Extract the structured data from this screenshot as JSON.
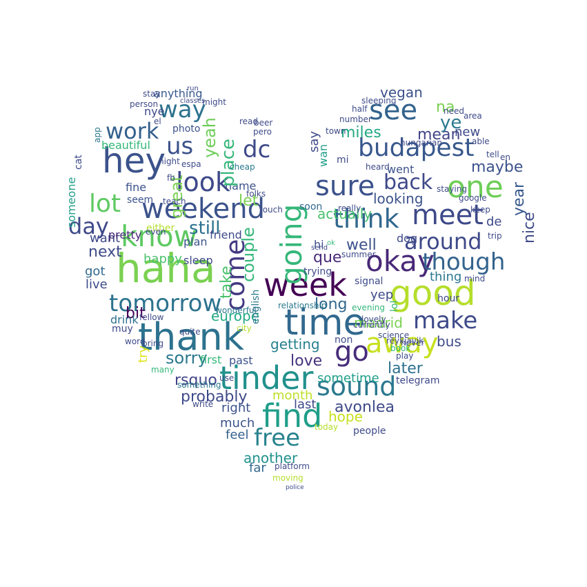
{
  "word_cloud": {
    "shape": "heart",
    "colormap": "viridis",
    "background": "#ffffff",
    "words": [
      {
        "text": "haha",
        "color": "#7ad151"
      },
      {
        "text": "thank",
        "color": "#2c728e"
      },
      {
        "text": "week",
        "color": "#440154"
      },
      {
        "text": "time",
        "color": "#31688e"
      },
      {
        "text": "good",
        "color": "#b5de2b"
      },
      {
        "text": "tinder",
        "color": "#21918c"
      },
      {
        "text": "find",
        "color": "#1f9e89"
      },
      {
        "text": "know",
        "color": "#5ec962"
      },
      {
        "text": "weekend",
        "color": "#3b528b"
      },
      {
        "text": "hey",
        "color": "#3b528b"
      },
      {
        "text": "one",
        "color": "#6ece58"
      },
      {
        "text": "meet",
        "color": "#3e4a89"
      },
      {
        "text": "okay",
        "color": "#482878"
      },
      {
        "text": "going",
        "color": "#35b779"
      },
      {
        "text": "tomorrow",
        "color": "#2c728e"
      },
      {
        "text": "free",
        "color": "#26828e"
      },
      {
        "text": "sound",
        "color": "#2a788e"
      },
      {
        "text": "away",
        "color": "#c8e020"
      },
      {
        "text": "budapest",
        "color": "#38588c"
      },
      {
        "text": "look",
        "color": "#3e4989"
      },
      {
        "text": "sure",
        "color": "#3b528b"
      },
      {
        "text": "think",
        "color": "#31688e"
      },
      {
        "text": "see",
        "color": "#33638d"
      },
      {
        "text": "come",
        "color": "#443983"
      },
      {
        "text": "lot",
        "color": "#5ec962"
      },
      {
        "text": "go",
        "color": "#472c7a"
      },
      {
        "text": "make",
        "color": "#3e4a89"
      },
      {
        "text": "around",
        "color": "#3e4989"
      },
      {
        "text": "though",
        "color": "#33638d"
      },
      {
        "text": "day",
        "color": "#3e4989"
      },
      {
        "text": "work",
        "color": "#35608d"
      },
      {
        "text": "way",
        "color": "#2c728e"
      },
      {
        "text": "back",
        "color": "#3e4989"
      },
      {
        "text": "us",
        "color": "#3b528b"
      },
      {
        "text": "dc",
        "color": "#3e4a89"
      },
      {
        "text": "actually",
        "color": "#4ac16d"
      },
      {
        "text": "looking",
        "color": "#3b528b"
      },
      {
        "text": "still",
        "color": "#2c728e"
      },
      {
        "text": "next",
        "color": "#3e4a89"
      },
      {
        "text": "probably",
        "color": "#3e4a89"
      },
      {
        "text": "rsquo",
        "color": "#414487"
      },
      {
        "text": "sorry",
        "color": "#2a788e"
      },
      {
        "text": "madrid",
        "color": "#7ad151"
      },
      {
        "text": "month",
        "color": "#bddf26"
      },
      {
        "text": "hope",
        "color": "#c8e020"
      },
      {
        "text": "another",
        "color": "#21918c"
      },
      {
        "text": "love",
        "color": "#46327e"
      },
      {
        "text": "sometime",
        "color": "#1f9e89"
      },
      {
        "text": "later",
        "color": "#2d708e"
      },
      {
        "text": "avonlea",
        "color": "#3e4a89"
      },
      {
        "text": "getting",
        "color": "#277f8e"
      },
      {
        "text": "long",
        "color": "#31688e"
      },
      {
        "text": "maybe",
        "color": "#3b528b"
      },
      {
        "text": "mean",
        "color": "#414487"
      },
      {
        "text": "miles",
        "color": "#22a884"
      },
      {
        "text": "vegan",
        "color": "#3b528b"
      },
      {
        "text": "na",
        "color": "#7ad151"
      },
      {
        "text": "ye",
        "color": "#2a788e"
      },
      {
        "text": "new",
        "color": "#3e4a89"
      },
      {
        "text": "nice",
        "color": "#3e4a89"
      },
      {
        "text": "year",
        "color": "#38588c"
      },
      {
        "text": "de",
        "color": "#3e4989"
      },
      {
        "text": "went",
        "color": "#3b528b"
      },
      {
        "text": "well",
        "color": "#3b528b"
      },
      {
        "text": "que",
        "color": "#482878"
      },
      {
        "text": "last",
        "color": "#3e4989"
      },
      {
        "text": "right",
        "color": "#3b528b"
      },
      {
        "text": "much",
        "color": "#3b528b"
      },
      {
        "text": "feel",
        "color": "#35608d"
      },
      {
        "text": "far",
        "color": "#31688e"
      },
      {
        "text": "bus",
        "color": "#3e4a89"
      },
      {
        "text": "yep",
        "color": "#3e4a89"
      },
      {
        "text": "dog",
        "color": "#3e4989"
      },
      {
        "text": "thing",
        "color": "#2a788e"
      },
      {
        "text": "europe",
        "color": "#22a884"
      },
      {
        "text": "bit",
        "color": "#440154"
      },
      {
        "text": "drink",
        "color": "#2d708e"
      },
      {
        "text": "live",
        "color": "#3e4a89"
      },
      {
        "text": "got",
        "color": "#31688e"
      },
      {
        "text": "want",
        "color": "#3e4a89"
      },
      {
        "text": "pretty",
        "color": "#482878"
      },
      {
        "text": "happy",
        "color": "#4ac16d"
      },
      {
        "text": "sleep",
        "color": "#3e4a89"
      },
      {
        "text": "plan",
        "color": "#3b528b"
      },
      {
        "text": "friend",
        "color": "#3e4989"
      },
      {
        "text": "name",
        "color": "#3b528b"
      },
      {
        "text": "fine",
        "color": "#3b528b"
      },
      {
        "text": "seem",
        "color": "#3b528b"
      },
      {
        "text": "beautiful",
        "color": "#35b779"
      },
      {
        "text": "photo",
        "color": "#3b528b"
      },
      {
        "text": "anything",
        "color": "#38588c"
      },
      {
        "text": "nye",
        "color": "#3e4989"
      },
      {
        "text": "first",
        "color": "#35b779"
      },
      {
        "text": "past",
        "color": "#3b528b"
      },
      {
        "text": "try",
        "color": "#dde318"
      },
      {
        "text": "muy",
        "color": "#3e4989"
      },
      {
        "text": "soon",
        "color": "#31688e"
      },
      {
        "text": "hi",
        "color": "#3e4989"
      },
      {
        "text": "signal",
        "color": "#3e4989"
      },
      {
        "text": "non",
        "color": "#3e4a89"
      },
      {
        "text": "telegram",
        "color": "#3e4989"
      },
      {
        "text": "people",
        "color": "#3e4989"
      },
      {
        "text": "hour",
        "color": "#3e4989"
      },
      {
        "text": "say",
        "color": "#3e4a89"
      },
      {
        "text": "mi",
        "color": "#3e4a89"
      },
      {
        "text": "great",
        "color": "#7ad151"
      },
      {
        "text": "yeah",
        "color": "#6ece58"
      },
      {
        "text": "let",
        "color": "#7ad151"
      },
      {
        "text": "take",
        "color": "#4ac16d"
      },
      {
        "text": "place",
        "color": "#35b779"
      },
      {
        "text": "couple",
        "color": "#35b779"
      },
      {
        "text": "wan",
        "color": "#1f9e89"
      },
      {
        "text": "english",
        "color": "#2a788e"
      },
      {
        "text": "someone",
        "color": "#1f9e89"
      },
      {
        "text": "lol",
        "color": "#35b779"
      },
      {
        "text": "either",
        "color": "#b5de2b"
      },
      {
        "text": "even",
        "color": "#3e4a89"
      },
      {
        "text": "cat",
        "color": "#3e4a89"
      },
      {
        "text": "app",
        "color": "#2a788e"
      },
      {
        "text": "person",
        "color": "#3e4a89"
      },
      {
        "text": "stay",
        "color": "#3e4a89"
      },
      {
        "text": "might",
        "color": "#3e4a89"
      },
      {
        "text": "el",
        "color": "#3e4a89"
      },
      {
        "text": "night",
        "color": "#3e4a89"
      },
      {
        "text": "fb",
        "color": "#3e4a89"
      },
      {
        "text": "espa",
        "color": "#3e4a89"
      },
      {
        "text": "teach",
        "color": "#3e4a89"
      },
      {
        "text": "read",
        "color": "#3e4a89"
      },
      {
        "text": "beer",
        "color": "#3e4a89"
      },
      {
        "text": "pero",
        "color": "#3e4a89"
      },
      {
        "text": "cheap",
        "color": "#2a788e"
      },
      {
        "text": "folks",
        "color": "#3e4a89"
      },
      {
        "text": "touch",
        "color": "#3e4a89"
      },
      {
        "text": "number",
        "color": "#3e4a89"
      },
      {
        "text": "half",
        "color": "#3e4a89"
      },
      {
        "text": "sleeping",
        "color": "#3e4a89"
      },
      {
        "text": "town",
        "color": "#3e4a89"
      },
      {
        "text": "hungarian",
        "color": "#3e4a89"
      },
      {
        "text": "staying",
        "color": "#3e4a89"
      },
      {
        "text": "google",
        "color": "#3e4a89"
      },
      {
        "text": "heard",
        "color": "#3e4a89"
      },
      {
        "text": "really",
        "color": "#3e4a89"
      },
      {
        "text": "keep",
        "color": "#3e4a89"
      },
      {
        "text": "mind",
        "color": "#3e4a89"
      },
      {
        "text": "trip",
        "color": "#3e4a89"
      },
      {
        "text": "tell",
        "color": "#3e4a89"
      },
      {
        "text": "en",
        "color": "#3e4a89"
      },
      {
        "text": "able",
        "color": "#3e4a89"
      },
      {
        "text": "area",
        "color": "#3e4a89"
      },
      {
        "text": "need",
        "color": "#3e4a89"
      },
      {
        "text": "trying",
        "color": "#3e4a89"
      },
      {
        "text": "evening",
        "color": "#35b779"
      },
      {
        "text": "relationship",
        "color": "#2a788e"
      },
      {
        "text": "currently",
        "color": "#3e4a89"
      },
      {
        "text": "lovely",
        "color": "#3e4a89"
      },
      {
        "text": "book",
        "color": "#35b779"
      },
      {
        "text": "play",
        "color": "#3e4a89"
      },
      {
        "text": "science",
        "color": "#3e4a89"
      },
      {
        "text": "reykjavik",
        "color": "#3e4a89"
      },
      {
        "text": "never",
        "color": "#3e4a89"
      },
      {
        "text": "quite",
        "color": "#3e4a89"
      },
      {
        "text": "city",
        "color": "#b5de2b"
      },
      {
        "text": "word",
        "color": "#3e4a89"
      },
      {
        "text": "bring",
        "color": "#3e4a89"
      },
      {
        "text": "fellow",
        "color": "#3e4a89"
      },
      {
        "text": "many",
        "color": "#35b779"
      },
      {
        "text": "something",
        "color": "#2a788e"
      },
      {
        "text": "use",
        "color": "#3e4a89"
      },
      {
        "text": "write",
        "color": "#3e4a89"
      },
      {
        "text": "today",
        "color": "#b5de2b"
      },
      {
        "text": "platform",
        "color": "#3e4a89"
      },
      {
        "text": "moving",
        "color": "#b5de2b"
      },
      {
        "text": "summer",
        "color": "#3e4a89"
      },
      {
        "text": "wonderful",
        "color": "#2a788e"
      },
      {
        "text": "send",
        "color": "#3e4a89"
      },
      {
        "text": "ok",
        "color": "#35b779"
      },
      {
        "text": "classes",
        "color": "#3e4a89"
      },
      {
        "text": "run",
        "color": "#3e4a89"
      },
      {
        "text": "police",
        "color": "#3e4a89"
      }
    ]
  }
}
